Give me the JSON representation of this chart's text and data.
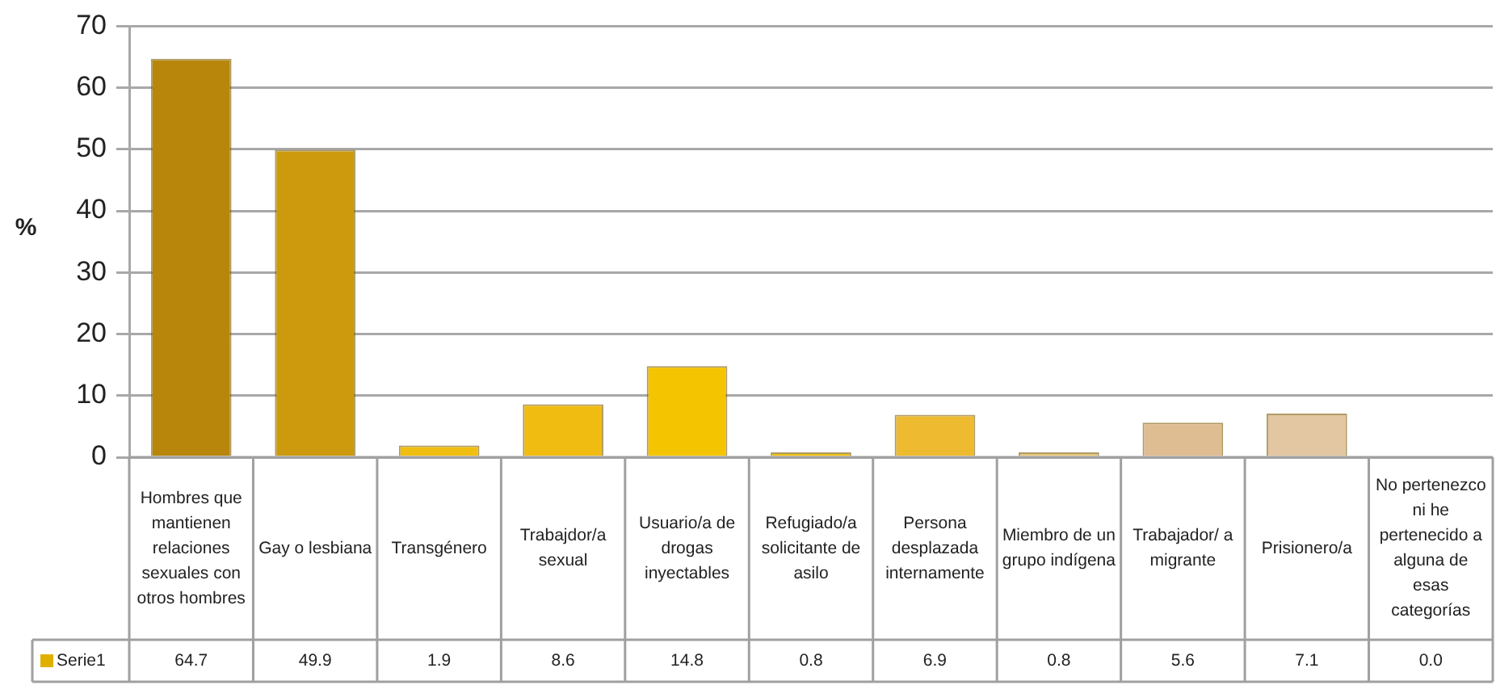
{
  "chart_data": {
    "type": "bar",
    "ylabel": "%",
    "categories": [
      "Hombres que mantienen relaciones sexuales con otros hombres",
      "Gay o lesbiana",
      "Transgénero",
      "Trabajdor/a sexual",
      "Usuario/a de drogas inyectables",
      "Refugiado/a solicitante de asilo",
      "Persona desplazada internamente",
      "Miembro de un grupo indígena",
      "Trabajador/ a migrante",
      "Prisionero/a",
      "No pertenezco ni he pertenecido a alguna de esas categorías"
    ],
    "series": [
      {
        "name": "Serie1",
        "color": "#e0b000",
        "values": [
          64.7,
          49.9,
          1.9,
          8.6,
          14.8,
          0.8,
          6.9,
          0.8,
          5.6,
          7.1,
          0.0
        ],
        "colors": [
          "#b8860b",
          "#cc9a0c",
          "#f0be10",
          "#f0bc12",
          "#f5c400",
          "#f2c010",
          "#eebb30",
          "#e8c878",
          "#dfbd92",
          "#e3c6a2",
          "#e3c6a2"
        ]
      }
    ],
    "value_labels": [
      "64.7",
      "49.9",
      "1.9",
      "8.6",
      "14.8",
      "0.8",
      "6.9",
      "0.8",
      "5.6",
      "7.1",
      "0.0"
    ],
    "ylim": [
      0,
      70
    ],
    "yticks": [
      0,
      10,
      20,
      30,
      40,
      50,
      60,
      70
    ],
    "grid": "y"
  }
}
